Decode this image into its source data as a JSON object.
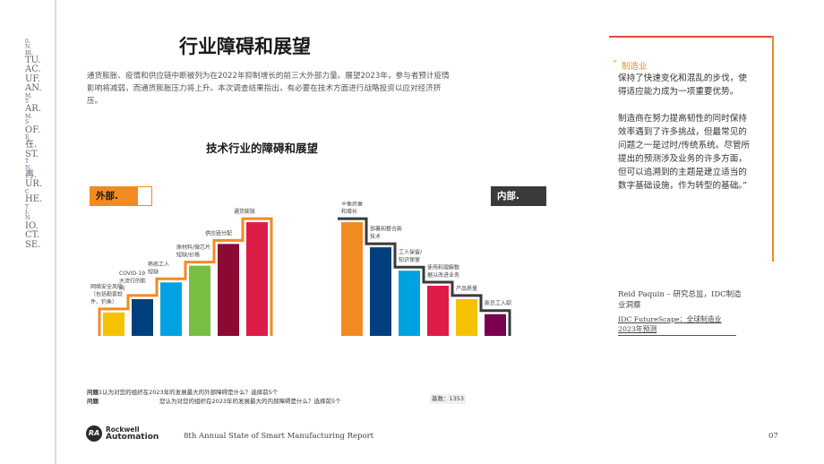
{
  "side_watermark": [
    "0.",
    "N.",
    "BL",
    "TU.",
    "AC.",
    "UF.",
    "AN.",
    "M.",
    "T",
    "AR.",
    "M.",
    "S",
    "OF.",
    "E",
    "在.",
    "ST.",
    "T",
    "N.",
    "再.",
    "UR.",
    "C",
    "HE.",
    "T",
    "I:",
    "N.",
    "IO.",
    "CT.",
    "SE."
  ],
  "page": {
    "title": "行业障碍和展望",
    "intro": "通货膨胀、疫情和供应链中断被列为在2022年抑制增长的前三大外部力量。展望2023年，参与者预计疫情影响将减弱，而通货膨胀压力将上升。本次调查结果指出，有必要在技术方面进行战略投资以应对经济挤压。"
  },
  "chart": {
    "title": "技术行业的障碍和展望",
    "external_tag": "外部.",
    "internal_tag": "内部."
  },
  "chart_data": {
    "type": "bar",
    "title": "技术行业的障碍和展望",
    "groups": [
      {
        "name": "外部.",
        "categories": [
          "网络安全风险（包括勒索软件、钓鱼）",
          "COVID-19大流行的影响",
          "熟练工人短缺",
          "原材料/微芯片短缺/价格",
          "供应链分配",
          "通货膨胀"
        ],
        "values": [
          14,
          22,
          32,
          42,
          55,
          68
        ],
        "colors": [
          "#f5c200",
          "#003f7d",
          "#00a3e0",
          "#78be43",
          "#8b0a34",
          "#dd1c4a"
        ]
      },
      {
        "name": "内部.",
        "categories": [
          "平衡质量和增长",
          "部署和整合新技术",
          "工人保留/知识保留",
          "使用和理解数据以改进业务",
          "产品质量",
          "新员工入职"
        ],
        "values": [
          68,
          53,
          39,
          30,
          22,
          13
        ],
        "colors": [
          "#f28a22",
          "#003f7d",
          "#00a3e0",
          "#dd1c4a",
          "#f5c200",
          "#7a0050"
        ]
      }
    ],
    "label_lines": {
      "external": [
        [
          "网络安全风险",
          "（包括勒索软",
          "件、钓鱼）"
        ],
        [
          "COVID-19",
          "大流行的影",
          "响"
        ],
        [
          "熟练工人",
          "短缺"
        ],
        [
          "原材料/微芯片",
          "短缺/价格"
        ],
        [
          "供应链分配"
        ],
        [
          "通货膨胀"
        ]
      ],
      "internal": [
        [
          "平衡质量",
          "和增长"
        ],
        [
          "部署和整合新",
          "技术"
        ],
        [
          "工人保留/",
          "知识保留"
        ],
        [
          "使用和理解数",
          "据以改进业务"
        ],
        [
          "产品质量"
        ],
        [
          "新员工入职"
        ]
      ]
    },
    "ylim": [
      0,
      75
    ],
    "grid": false
  },
  "questions": {
    "q1_bold": "问题",
    "q1_text": "1认为对您的组织在2023年的发展最大的外部障碍是什么？选择前5个",
    "q2_bold": "问题",
    "q2_text": "您认为对您的组织在2023年的发展最大的内部障碍是什么？选择前5个",
    "count": "基数：1353"
  },
  "quote": {
    "mark": "“",
    "label": "制造业",
    "p1": "保持了快速变化和混乱的步伐，使得适应能力成为一项重要优势。",
    "p2": "制造商在努力提高韧性的同时保持效率遇到了许多挑战，但最常见的问题之一是过时/传统系统。尽管所提出的预测涉及业务的许多方面，但可以追溯到的主题是建立适当的数字基础设施，作为转型的基础。”",
    "attribution": "Reid Paquin – 研究总监，IDC制造业洞察",
    "reference": "IDC FutureScape：全球制造业2023年预测"
  },
  "footer": {
    "logo_mark": "RA",
    "logo_line1": "Rockwell",
    "logo_line2": "Automation",
    "report": "8th Annual State of Smart Manufacturing Report",
    "page_number": "07"
  },
  "colors": {
    "orange": "#f28a22",
    "dark_tag": "#3a3a3a",
    "quote_red": "#e8463a"
  }
}
